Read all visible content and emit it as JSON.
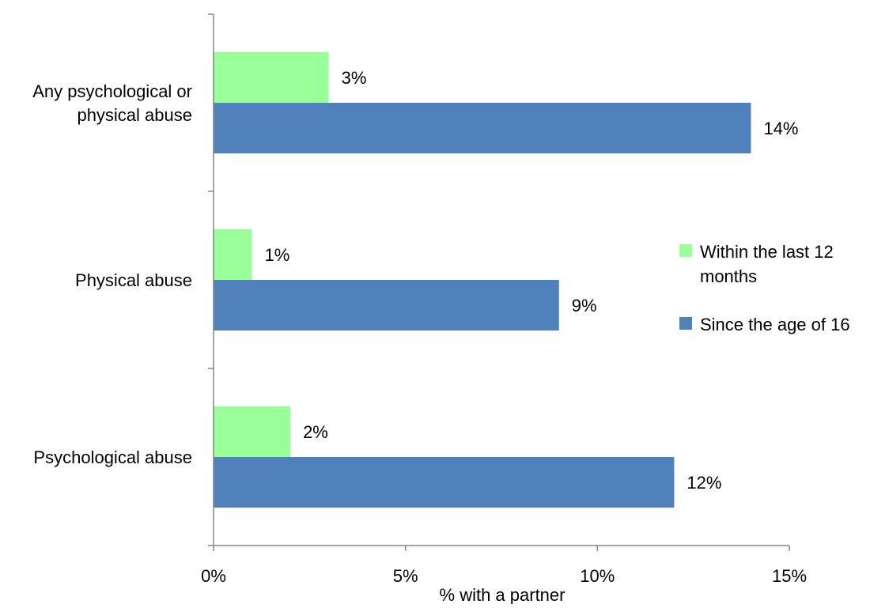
{
  "chart_data": {
    "type": "bar",
    "orientation": "horizontal",
    "categories": [
      "Any psychological or physical abuse",
      "Physical abuse",
      "Psychological abuse"
    ],
    "category_label_lines": [
      [
        "Any psychological or",
        "physical abuse"
      ],
      [
        "Physical abuse"
      ],
      [
        "Psychological abuse"
      ]
    ],
    "series": [
      {
        "name": "Within the last 12 months",
        "legend_lines": [
          "Within the last 12",
          "months"
        ],
        "color": "#99FF99",
        "values": [
          3,
          1,
          2
        ],
        "labels": [
          "3%",
          "1%",
          "2%"
        ]
      },
      {
        "name": "Since the age of 16",
        "legend_lines": [
          "Since the age of 16"
        ],
        "color": "#4F81BD",
        "values": [
          14,
          9,
          12
        ],
        "labels": [
          "14%",
          "9%",
          "12%"
        ]
      }
    ],
    "xlabel": "% with a partner",
    "xlim": [
      0,
      15
    ],
    "xticks": [
      0,
      5,
      10,
      15
    ],
    "xtick_labels": [
      "0%",
      "5%",
      "10%",
      "15%"
    ],
    "grid": false,
    "legend_position": "right"
  }
}
